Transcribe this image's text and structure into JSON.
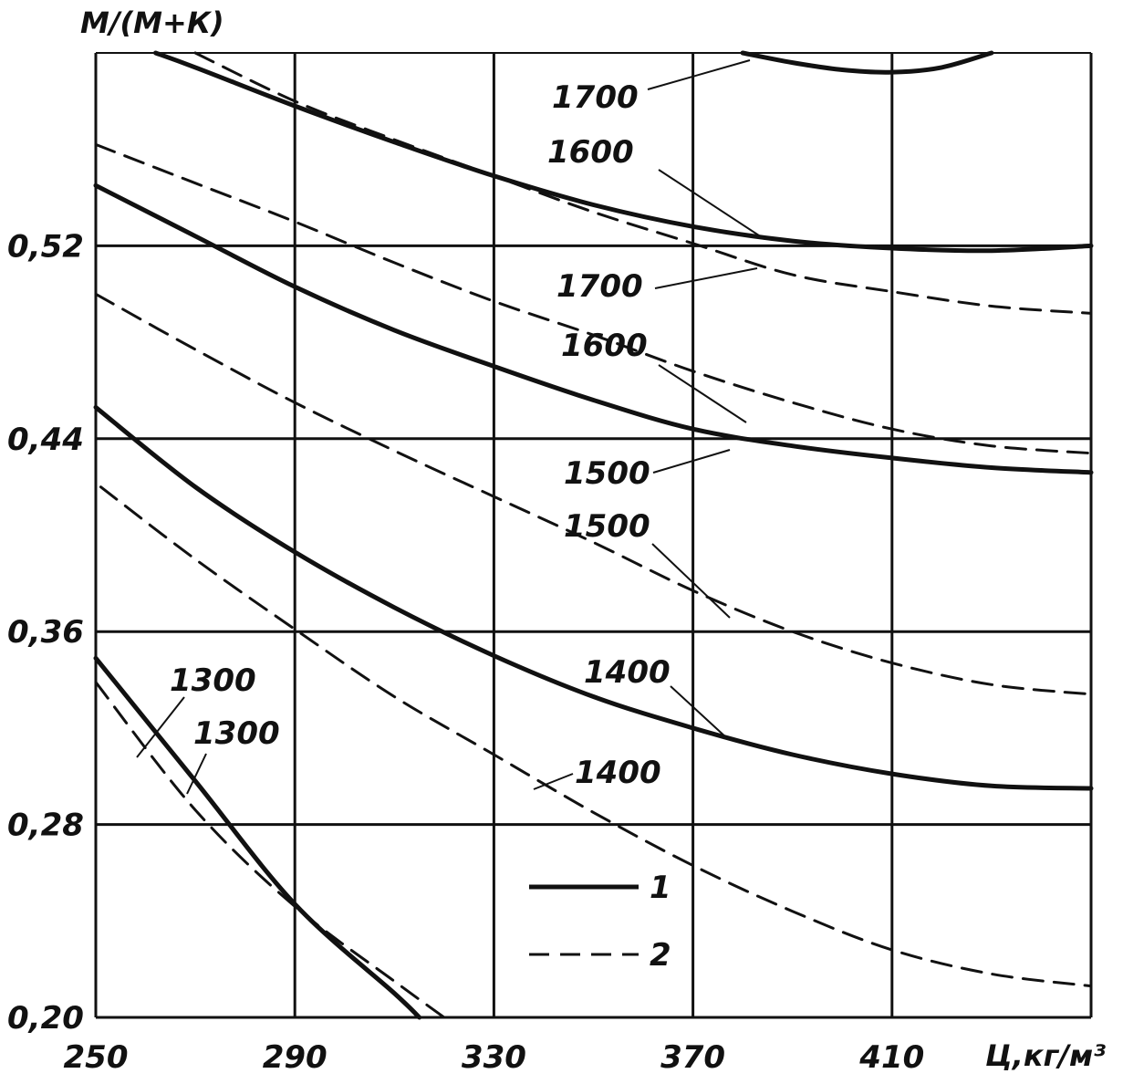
{
  "chart_data": {
    "type": "line",
    "ylabel": "М/(М+К)",
    "xlabel": "Ц,кг/м³",
    "xlim": [
      250,
      450
    ],
    "ylim": [
      0.2,
      0.6
    ],
    "x_ticks": [
      "250",
      "290",
      "330",
      "370",
      "410"
    ],
    "y_ticks": [
      "0,20",
      "0,28",
      "0,36",
      "0,44",
      "0,52"
    ],
    "grid": true,
    "legend": {
      "placement": "bottom-right",
      "entries": [
        {
          "label": "1",
          "style": "solid"
        },
        {
          "label": "2",
          "style": "dashed"
        }
      ]
    },
    "series": [
      {
        "label": "1700",
        "style": "solid",
        "x": [
          380,
          390,
          400,
          410,
          420,
          430
        ],
        "y": [
          0.6,
          0.596,
          0.593,
          0.592,
          0.594,
          0.6
        ]
      },
      {
        "label": "1600",
        "style": "solid",
        "x": [
          262,
          270,
          290,
          310,
          330,
          350,
          370,
          390,
          410,
          430,
          450
        ],
        "y": [
          0.6,
          0.594,
          0.578,
          0.563,
          0.549,
          0.537,
          0.528,
          0.522,
          0.519,
          0.518,
          0.52
        ]
      },
      {
        "label": "1700",
        "style": "dashed",
        "x": [
          270,
          290,
          310,
          330,
          350,
          370,
          390,
          410,
          430,
          450
        ],
        "y": [
          0.6,
          0.58,
          0.564,
          0.549,
          0.534,
          0.521,
          0.508,
          0.501,
          0.495,
          0.492
        ]
      },
      {
        "label": "1600",
        "style": "dashed",
        "x": [
          250,
          270,
          290,
          310,
          330,
          350,
          370,
          390,
          410,
          430,
          450
        ],
        "y": [
          0.562,
          0.546,
          0.53,
          0.513,
          0.497,
          0.483,
          0.468,
          0.455,
          0.444,
          0.437,
          0.434
        ]
      },
      {
        "label": "1500",
        "style": "solid",
        "x": [
          250,
          270,
          290,
          310,
          330,
          350,
          370,
          390,
          410,
          430,
          450
        ],
        "y": [
          0.545,
          0.524,
          0.503,
          0.485,
          0.47,
          0.456,
          0.444,
          0.437,
          0.432,
          0.428,
          0.426
        ]
      },
      {
        "label": "1500",
        "style": "dashed",
        "x": [
          250,
          270,
          290,
          310,
          330,
          350,
          370,
          390,
          410,
          430,
          450
        ],
        "y": [
          0.5,
          0.477,
          0.455,
          0.435,
          0.416,
          0.397,
          0.377,
          0.36,
          0.347,
          0.338,
          0.334
        ]
      },
      {
        "label": "1400",
        "style": "solid",
        "x": [
          250,
          270,
          290,
          310,
          330,
          350,
          370,
          390,
          410,
          430,
          450
        ],
        "y": [
          0.453,
          0.42,
          0.393,
          0.37,
          0.35,
          0.333,
          0.32,
          0.309,
          0.301,
          0.296,
          0.295
        ]
      },
      {
        "label": "1400",
        "style": "dashed",
        "x": [
          251,
          270,
          290,
          310,
          330,
          350,
          370,
          390,
          410,
          430,
          450
        ],
        "y": [
          0.42,
          0.39,
          0.361,
          0.333,
          0.309,
          0.285,
          0.263,
          0.244,
          0.228,
          0.218,
          0.213
        ]
      },
      {
        "label": "1300",
        "style": "solid",
        "x": [
          250,
          270,
          290,
          310,
          315
        ],
        "y": [
          0.349,
          0.298,
          0.247,
          0.21,
          0.2
        ]
      },
      {
        "label": "1300",
        "style": "dashed",
        "x": [
          250,
          270,
          290,
          310,
          320
        ],
        "y": [
          0.339,
          0.286,
          0.246,
          0.215,
          0.2
        ]
      }
    ]
  }
}
